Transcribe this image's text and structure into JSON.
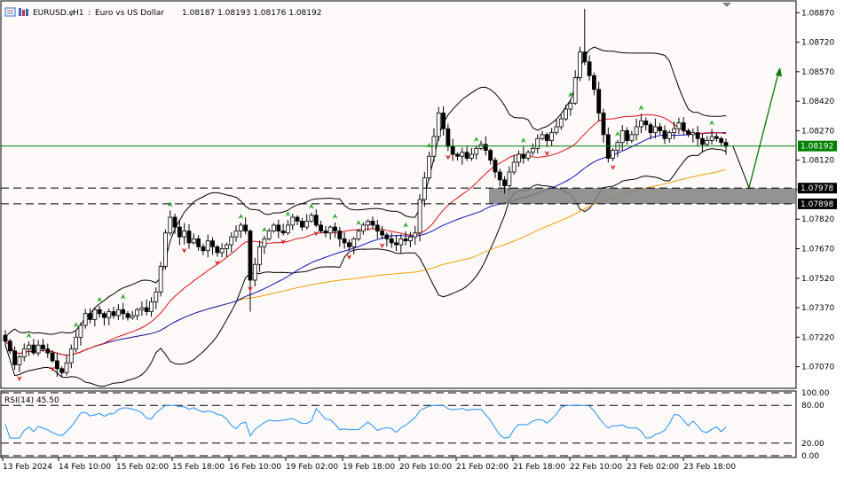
{
  "header": {
    "symbol": "EURUSD.e",
    "timeframe": "H1",
    "description": "Euro vs US Dollar",
    "ohlc": "1.08187 1.08193 1.08176 1.08192"
  },
  "indicator": {
    "rsi_label": "RSI(14) 45.50",
    "levels": [
      "100.00",
      "80.00",
      "20.00",
      "0.00"
    ]
  },
  "price_tags": {
    "current": "1.08192",
    "zone_top": "1.07978",
    "zone_bottom": "1.07898"
  },
  "colors": {
    "background": "#fffafa",
    "candle_up": "#ffffff",
    "candle_down": "#000000",
    "ma_fast": "#e01010",
    "ma_mid": "#1010c0",
    "ma_slow": "#f0a000",
    "bollinger": "#000000",
    "rsi_line": "#1e90ff",
    "current_price": "#008000",
    "zone_fill": "#808080",
    "arrow_up": "#22aa22",
    "arrow_down": "#dd2222"
  },
  "chart_data": {
    "type": "candlestick",
    "symbol": "EURUSD.e",
    "timeframe": "H1",
    "y_ticks": [
      "1.08870",
      "1.08720",
      "1.08570",
      "1.08420",
      "1.08270",
      "1.08120",
      "1.07970",
      "1.07820",
      "1.07670",
      "1.07520",
      "1.07370",
      "1.07220",
      "1.07070"
    ],
    "ylim": [
      1.0696,
      1.0893
    ],
    "x_ticks": [
      "13 Feb 2024",
      "14 Feb 10:00",
      "15 Feb 02:00",
      "15 Feb 18:00",
      "16 Feb 10:00",
      "19 Feb 02:00",
      "19 Feb 18:00",
      "20 Feb 10:00",
      "21 Feb 02:00",
      "21 Feb 18:00",
      "22 Feb 10:00",
      "23 Feb 02:00",
      "23 Feb 18:00"
    ],
    "current_price": 1.08192,
    "support_zone": [
      1.07898,
      1.07978
    ],
    "rsi_value": 45.5,
    "rsi_levels": [
      100,
      80,
      20,
      0
    ],
    "close_path": [
      1.072,
      1.0715,
      1.0708,
      1.0712,
      1.0716,
      1.0718,
      1.0714,
      1.0718,
      1.0716,
      1.0714,
      1.071,
      1.0706,
      1.0704,
      1.0709,
      1.0716,
      1.0722,
      1.0728,
      1.0734,
      1.0731,
      1.0736,
      1.0734,
      1.0732,
      1.0735,
      1.0733,
      1.0736,
      1.0734,
      1.0732,
      1.0733,
      1.0736,
      1.0737,
      1.0735,
      1.074,
      1.0745,
      1.0758,
      1.0775,
      1.0783,
      1.0778,
      1.0773,
      1.0776,
      1.077,
      1.0772,
      1.0768,
      1.0766,
      1.0771,
      1.0768,
      1.0765,
      1.0767,
      1.0769,
      1.0773,
      1.0776,
      1.0779,
      1.0776,
      1.0751,
      1.0759,
      1.0768,
      1.0772,
      1.0776,
      1.0779,
      1.0776,
      1.0775,
      1.0779,
      1.0783,
      1.0781,
      1.0778,
      1.0781,
      1.0784,
      1.0779,
      1.0776,
      1.0775,
      1.0778,
      1.0776,
      1.0772,
      1.077,
      1.0768,
      1.0772,
      1.0776,
      1.0779,
      1.0781,
      1.0779,
      1.0776,
      1.0774,
      1.0772,
      1.077,
      1.0769,
      1.0772,
      1.0771,
      1.0773,
      1.0775,
      1.0792,
      1.0803,
      1.0814,
      1.0824,
      1.0836,
      1.0828,
      1.0819,
      1.0815,
      1.0814,
      1.0816,
      1.0813,
      1.0815,
      1.0818,
      1.082,
      1.0817,
      1.0812,
      1.0806,
      1.0802,
      1.0799,
      1.0806,
      1.0811,
      1.0815,
      1.0813,
      1.0816,
      1.0818,
      1.0823,
      1.0825,
      1.0822,
      1.0826,
      1.0829,
      1.0833,
      1.0838,
      1.0841,
      1.0854,
      1.0867,
      1.0862,
      1.0855,
      1.0848,
      1.0836,
      1.0825,
      1.0813,
      1.0817,
      1.0821,
      1.0827,
      1.0822,
      1.0825,
      1.0829,
      1.0832,
      1.083,
      1.0826,
      1.0829,
      1.0827,
      1.0823,
      1.0826,
      1.0828,
      1.0831,
      1.0827,
      1.0825,
      1.0826,
      1.0823,
      1.082,
      1.0822,
      1.0824,
      1.0823,
      1.0821,
      1.0819
    ]
  }
}
